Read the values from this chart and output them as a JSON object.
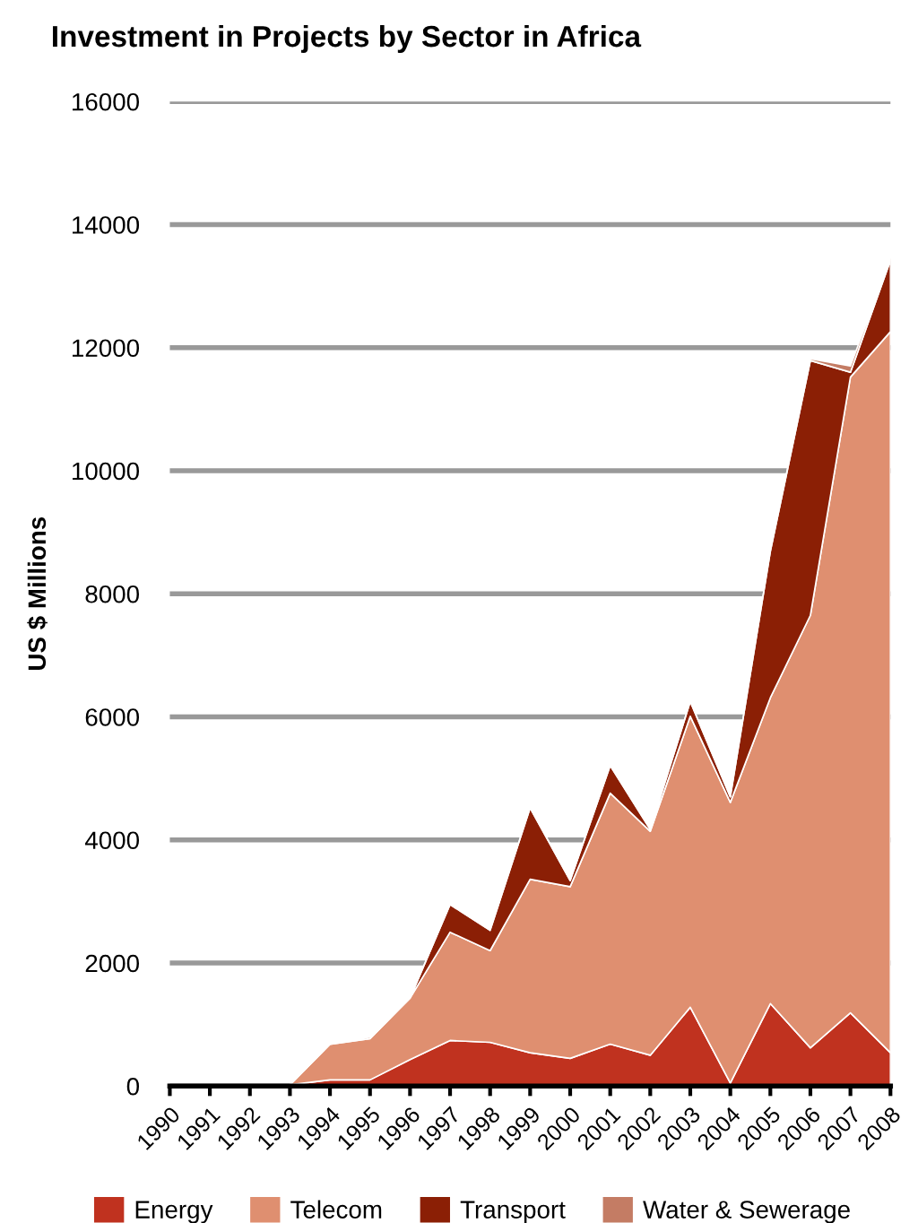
{
  "chart_data": {
    "type": "area",
    "stacked": true,
    "title": "Investment in Projects by Sector in Africa",
    "ylabel": "US $ Millions",
    "categories": [
      "1990",
      "1991",
      "1992",
      "1993",
      "1994",
      "1995",
      "1996",
      "1997",
      "1998",
      "1999",
      "2000",
      "2001",
      "2002",
      "2003",
      "2004",
      "2005",
      "2006",
      "2007",
      "2008"
    ],
    "series": [
      {
        "name": "Energy",
        "color": "#c0321f",
        "values": [
          20,
          20,
          20,
          20,
          100,
          100,
          430,
          740,
          710,
          540,
          450,
          680,
          500,
          1280,
          50,
          1340,
          620,
          1190,
          540
        ]
      },
      {
        "name": "Telecom",
        "color": "#df8f70",
        "values": [
          0,
          0,
          0,
          0,
          580,
          670,
          1000,
          1760,
          1490,
          2820,
          2790,
          4080,
          3640,
          4730,
          4560,
          4970,
          7030,
          10330,
          11720
        ]
      },
      {
        "name": "Transport",
        "color": "#8b1f05",
        "values": [
          0,
          0,
          0,
          0,
          10,
          30,
          0,
          450,
          330,
          1160,
          100,
          450,
          30,
          240,
          90,
          2380,
          4140,
          80,
          1160
        ]
      },
      {
        "name": "Water & Sewerage",
        "color": "#c47c64",
        "values": [
          0,
          0,
          0,
          0,
          0,
          0,
          0,
          0,
          0,
          0,
          0,
          0,
          0,
          0,
          0,
          0,
          30,
          100,
          30
        ]
      }
    ],
    "ylim": [
      0,
      16000
    ],
    "yticks": [
      0,
      2000,
      4000,
      6000,
      8000,
      10000,
      12000,
      14000,
      16000
    ],
    "grid": "y",
    "legend": "bottom"
  }
}
